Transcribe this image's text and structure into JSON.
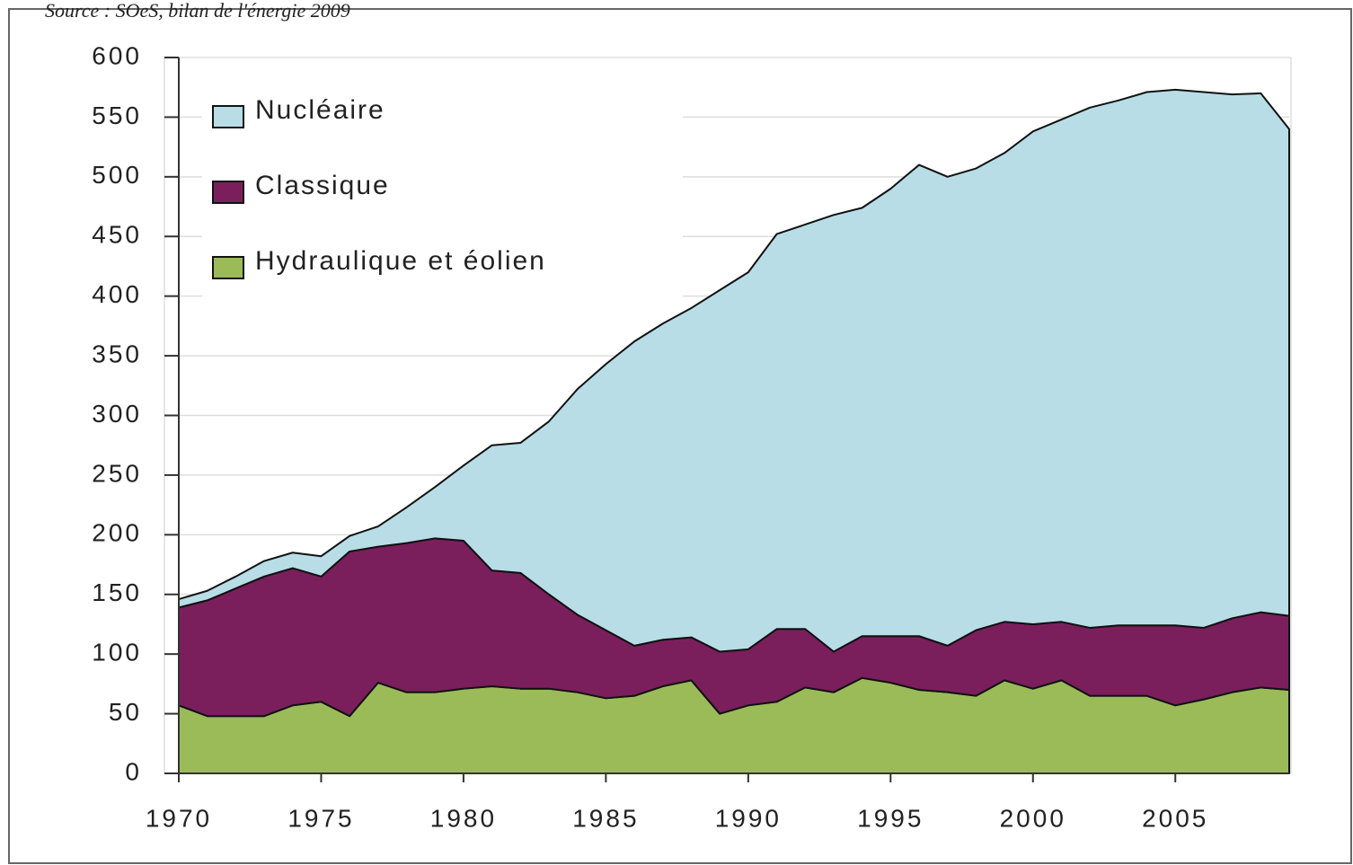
{
  "chart_data": {
    "type": "stacked_area",
    "source": "Source : SOeS, bilan de l'énergie 2009",
    "x": [
      1970,
      1971,
      1972,
      1973,
      1974,
      1975,
      1976,
      1977,
      1978,
      1979,
      1980,
      1981,
      1982,
      1983,
      1984,
      1985,
      1986,
      1987,
      1988,
      1989,
      1990,
      1991,
      1992,
      1993,
      1994,
      1995,
      1996,
      1997,
      1998,
      1999,
      2000,
      2001,
      2002,
      2003,
      2004,
      2005,
      2006,
      2007,
      2008,
      2009
    ],
    "series": [
      {
        "name": "Hydraulique et éolien",
        "color": "#9bbb59",
        "values": [
          57,
          48,
          48,
          48,
          57,
          60,
          48,
          76,
          68,
          68,
          71,
          73,
          71,
          71,
          68,
          63,
          65,
          73,
          78,
          50,
          57,
          60,
          72,
          68,
          80,
          76,
          70,
          68,
          65,
          78,
          71,
          78,
          65,
          65,
          65,
          57,
          62,
          68,
          72,
          70
        ]
      },
      {
        "name": "Classique",
        "color": "#7b1f5c",
        "values": [
          82,
          97,
          107,
          117,
          115,
          105,
          138,
          114,
          125,
          129,
          124,
          97,
          97,
          79,
          65,
          57,
          42,
          39,
          36,
          52,
          47,
          61,
          49,
          34,
          35,
          39,
          45,
          39,
          55,
          49,
          54,
          49,
          57,
          59,
          59,
          67,
          60,
          62,
          63,
          62
        ]
      },
      {
        "name": "Nucléaire",
        "color": "#b8dde6",
        "values": [
          7,
          8,
          10,
          13,
          13,
          17,
          13,
          17,
          30,
          43,
          63,
          105,
          109,
          145,
          189,
          223,
          255,
          265,
          276,
          303,
          316,
          331,
          339,
          366,
          359,
          375,
          395,
          393,
          387,
          393,
          413,
          421,
          436,
          440,
          447,
          449,
          449,
          439,
          435,
          408
        ]
      }
    ],
    "xlim": [
      1970,
      2009
    ],
    "xticks": [
      1970,
      1975,
      1980,
      1985,
      1990,
      1995,
      2000,
      2005
    ],
    "ylim": [
      0,
      600
    ],
    "yticks": [
      0,
      50,
      100,
      150,
      200,
      250,
      300,
      350,
      400,
      450,
      500,
      550,
      600
    ],
    "grid": true,
    "legend": "upper left"
  }
}
